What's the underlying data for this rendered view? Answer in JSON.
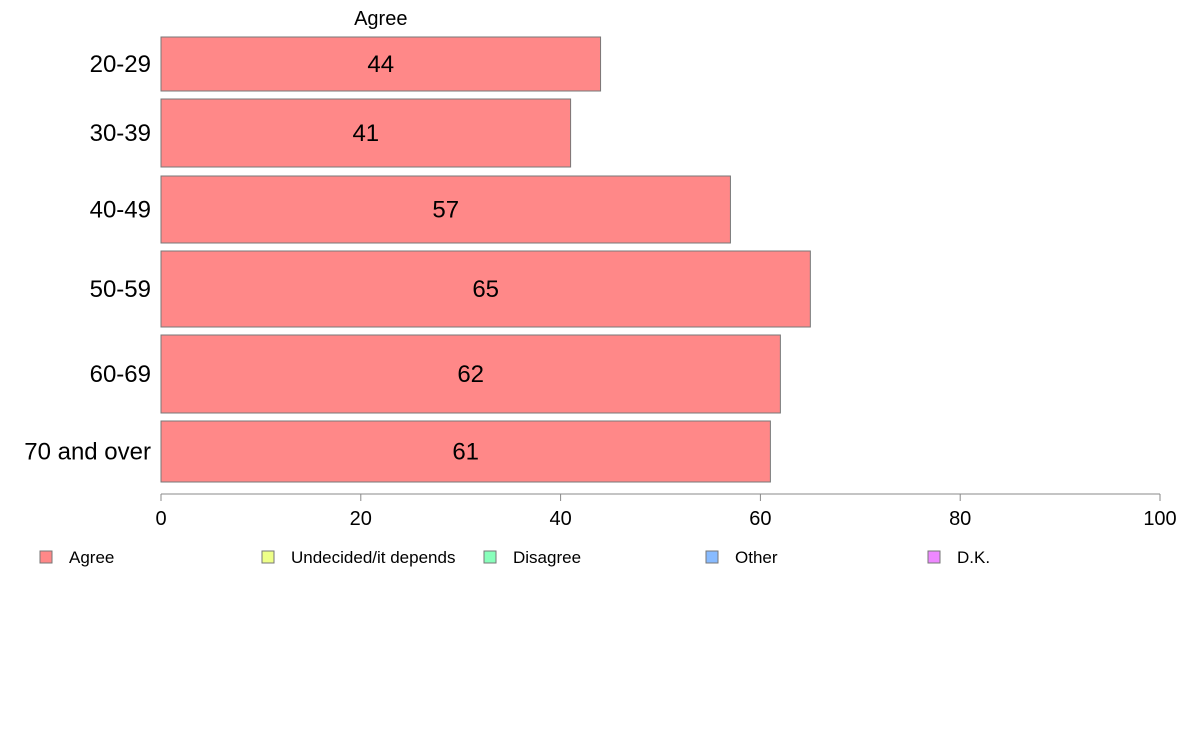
{
  "chart_data": {
    "type": "bar",
    "orientation": "horizontal",
    "stacked": true,
    "categories": [
      "20-29",
      "30-39",
      "40-49",
      "50-59",
      "60-69",
      "70 and over"
    ],
    "series": [
      {
        "name": "Agree",
        "color": "#ff8888",
        "values": [
          44,
          41,
          57,
          65,
          62,
          61
        ]
      }
    ],
    "segment_header": "Agree",
    "xlim": [
      0,
      100
    ],
    "xticks": [
      "0",
      "20",
      "40",
      "60",
      "80",
      "100"
    ],
    "xlabel": "",
    "ylabel": "",
    "grid": false,
    "legend": {
      "placement": "bottom",
      "items": [
        {
          "label": "Agree",
          "color": "#ff8888"
        },
        {
          "label": "Undecided/it depends",
          "color": "#eeff88"
        },
        {
          "label": "Disagree",
          "color": "#88ffbb"
        },
        {
          "label": "Other",
          "color": "#88bbff"
        },
        {
          "label": "D.K.",
          "color": "#ee88ff"
        }
      ]
    }
  }
}
